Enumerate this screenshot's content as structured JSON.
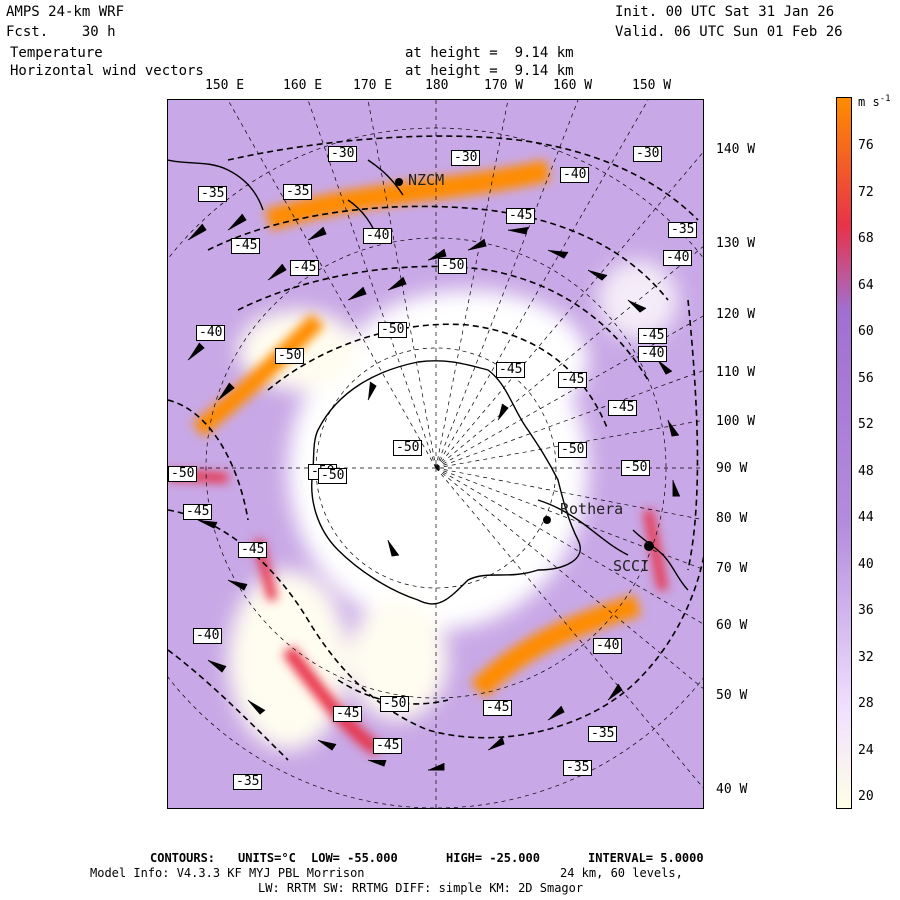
{
  "header": {
    "model": "AMPS 24-km WRF",
    "forecast": "Fcst.    30 h",
    "field1": "Temperature",
    "field2": "Horizontal wind vectors",
    "height1": "at height =  9.14 km",
    "height2": "at height =  9.14 km",
    "init": "Init. 00 UTC Sat 31 Jan 26",
    "valid": "Valid. 06 UTC Sun 01 Feb 26"
  },
  "lon_labels_top": [
    "150 E",
    "160 E",
    "170 E",
    "180",
    "170 W",
    "160 W",
    "150 W"
  ],
  "lat_labels_right": [
    "140 W",
    "130 W",
    "120 W",
    "110 W",
    "100 W",
    "90 W",
    "80 W",
    "70 W",
    "60 W",
    "50 W",
    "40 W"
  ],
  "stations": [
    {
      "name": "NZCM"
    },
    {
      "name": "Rothera"
    },
    {
      "name": "SCCI"
    }
  ],
  "contour_labels": [
    "-30",
    "-35",
    "-35",
    "-30",
    "-40",
    "-30",
    "-40",
    "-45",
    "-45",
    "-35",
    "-40",
    "-40",
    "-45",
    "-50",
    "-50",
    "-50",
    "-45",
    "-40",
    "-50",
    "-45",
    "-45",
    "-50",
    "-50",
    "-50",
    "-50",
    "-45",
    "-50",
    "-45",
    "-45",
    "-40",
    "-40",
    "-50",
    "-45",
    "-45",
    "-45",
    "-35",
    "-35",
    "-35"
  ],
  "colorbar": {
    "unit": "m s",
    "unit_exp": "-1",
    "ticks": [
      "76",
      "72",
      "68",
      "64",
      "60",
      "56",
      "52",
      "48",
      "44",
      "40",
      "36",
      "32",
      "28",
      "24",
      "20"
    ],
    "colors": {
      "low": "#ffffe6",
      "mid": "#b48cdc",
      "high1": "#e8324a",
      "high2": "#ff8c00"
    }
  },
  "footer": {
    "contours_label": "CONTOURS:",
    "units_label": "UNITS=°C",
    "low": "LOW= -55.000",
    "high": "HIGH= -25.000",
    "interval": "INTERVAL=   5.0000",
    "model_info": "Model Info: V4.3.3   KF     MYJ PBL  Morrison",
    "grid": "24 km,   60 levels,",
    "physics": "LW: RRTM SW: RRTMG   DIFF: simple KM: 2D Smagor"
  }
}
